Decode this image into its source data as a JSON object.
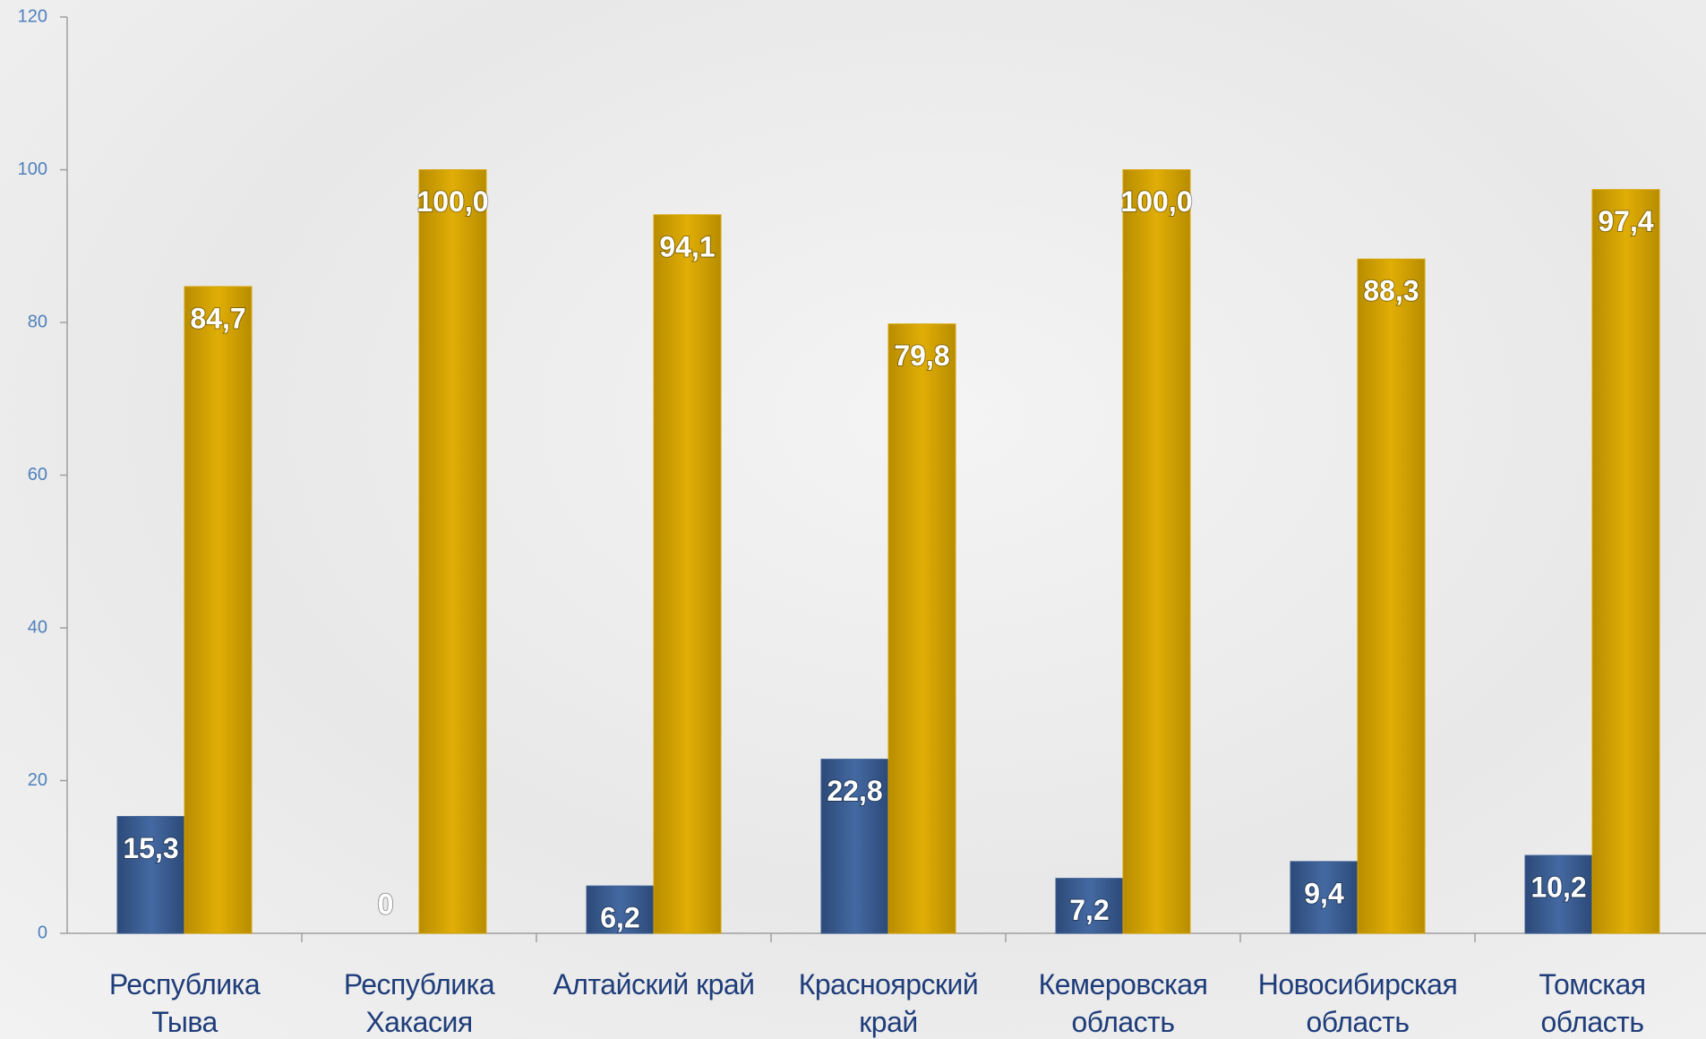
{
  "chart_data": {
    "type": "bar",
    "categories": [
      "Республика Тыва",
      "Республика Хакасия",
      "Алтайский край",
      "Красноярский край",
      "Кемеровская область",
      "Новосибирская область",
      "Томская область"
    ],
    "series": [
      {
        "color": "#3b5f96",
        "values": [
          15.3,
          0,
          6.2,
          22.8,
          7.2,
          9.4,
          10.2
        ],
        "value_labels": [
          "15,3",
          "0",
          "6,2",
          "22,8",
          "7,2",
          "9,4",
          "10,2"
        ]
      },
      {
        "color": "#d6a402",
        "values": [
          84.7,
          100.0,
          94.1,
          79.8,
          100.0,
          88.3,
          97.4
        ],
        "value_labels": [
          "84,7",
          "100,0",
          "94,1",
          "79,8",
          "100,0",
          "88,3",
          "97,4"
        ]
      }
    ],
    "ylim": [
      0,
      120
    ],
    "yticks": [
      0,
      20,
      40,
      60,
      80,
      100,
      120
    ],
    "grid": false
  }
}
